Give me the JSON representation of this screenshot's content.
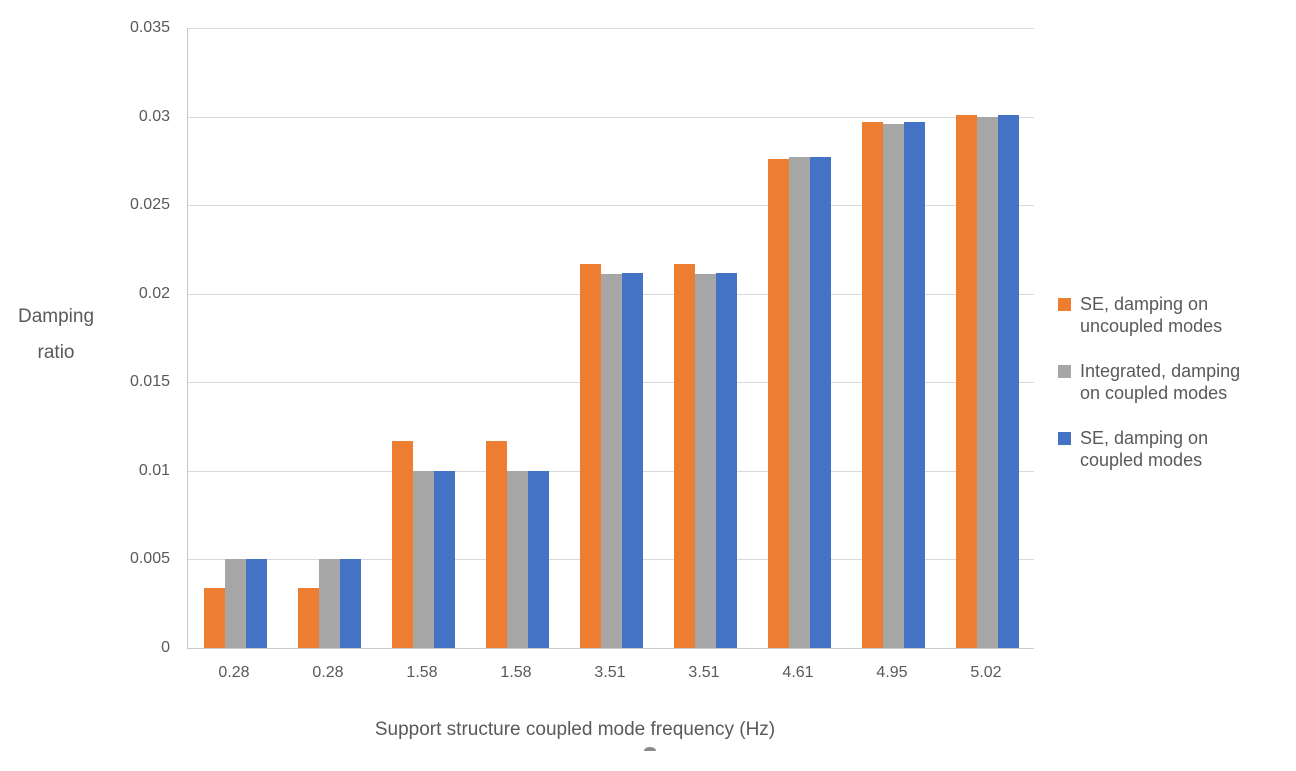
{
  "chart_data": {
    "type": "bar",
    "title": "",
    "xlabel": "Support structure coupled mode frequency (Hz)",
    "ylabel": "Damping ratio",
    "ylabel_lines": [
      "Damping",
      "ratio"
    ],
    "categories": [
      "0.28",
      "0.28",
      "1.58",
      "1.58",
      "3.51",
      "3.51",
      "4.61",
      "4.95",
      "5.02"
    ],
    "series": [
      {
        "name": "SE, damping on uncoupled modes",
        "color": "#ED7D31",
        "values": [
          0.0034,
          0.0034,
          0.0117,
          0.0117,
          0.0217,
          0.0217,
          0.0276,
          0.0297,
          0.0301
        ]
      },
      {
        "name": "Integrated, damping on coupled modes",
        "color": "#A6A6A6",
        "values": [
          0.005,
          0.005,
          0.01,
          0.01,
          0.0211,
          0.0211,
          0.0277,
          0.0296,
          0.03
        ]
      },
      {
        "name": "SE, damping on coupled modes",
        "color": "#4472C4",
        "values": [
          0.005,
          0.005,
          0.01,
          0.01,
          0.0212,
          0.0212,
          0.0277,
          0.0297,
          0.0301
        ]
      }
    ],
    "ylim": [
      0,
      0.035
    ],
    "ytick_step": 0.005,
    "yticks": [
      "0",
      "0.005",
      "0.01",
      "0.015",
      "0.02",
      "0.025",
      "0.03",
      "0.035"
    ],
    "grid": true,
    "legend_position": "right"
  },
  "legend": {
    "items": [
      {
        "label_lines": [
          "SE, damping on",
          "uncoupled modes"
        ],
        "color": "#ED7D31"
      },
      {
        "label_lines": [
          "Integrated, damping",
          "on coupled modes"
        ],
        "color": "#A6A6A6"
      },
      {
        "label_lines": [
          "SE, damping on",
          "coupled modes"
        ],
        "color": "#4472C4"
      }
    ]
  },
  "colors": {
    "gridline": "#D9D9D9",
    "axis_line": "#C9C9C9",
    "text": "#595959",
    "background": "#FFFFFF"
  }
}
